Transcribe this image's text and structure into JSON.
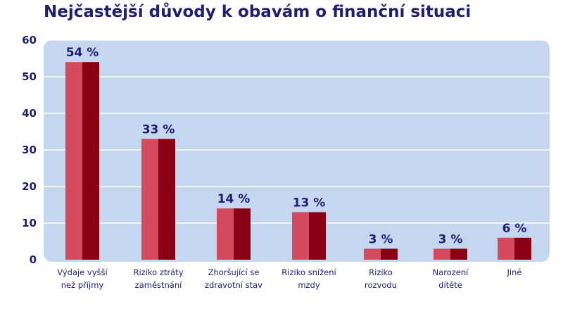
{
  "chart_data": {
    "type": "bar",
    "title": "Nejčastější důvody k obavám o finanční situaci",
    "xlabel": "",
    "ylabel": "",
    "ylim": [
      0,
      60
    ],
    "yticks": [
      0,
      10,
      20,
      30,
      40,
      50,
      60
    ],
    "grid": true,
    "categories": [
      [
        "Výdaje vyšší",
        "než příjmy"
      ],
      [
        "Riziko ztráty",
        "zaměstnání"
      ],
      [
        "Zhoršující se",
        "zdravotní stav"
      ],
      [
        "Riziko snížení",
        "mzdy"
      ],
      [
        "Riziko",
        "rozvodu"
      ],
      [
        "Narození",
        "dítěte"
      ],
      [
        "Jiné"
      ]
    ],
    "values": [
      54,
      33,
      14,
      13,
      3,
      3,
      6
    ],
    "data_labels": [
      "54 %",
      "33 %",
      "14 %",
      "13 %",
      "3 %",
      "3 %",
      "6 %"
    ],
    "colors": {
      "plot_background": "#c5d6ef",
      "grid": "#ffffff",
      "bar_light": "#d54a5e",
      "bar_dark": "#8b0012",
      "text": "#1f1f6e"
    }
  }
}
